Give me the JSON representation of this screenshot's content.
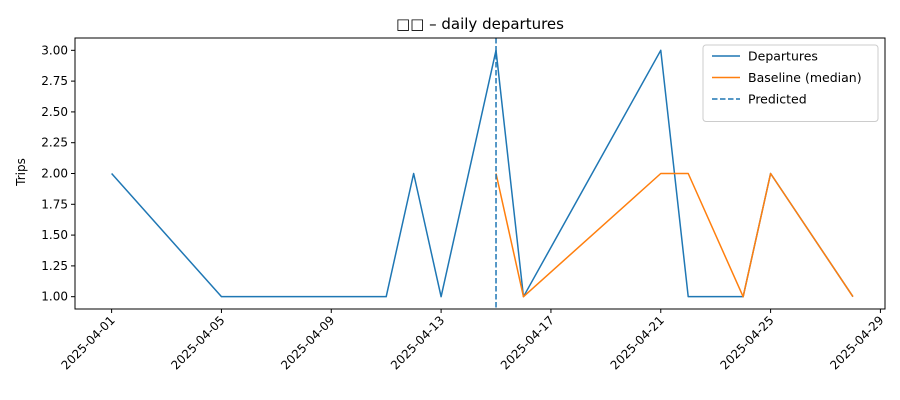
{
  "chart_data": {
    "type": "line",
    "title": "□□ – daily departures",
    "xlabel": "",
    "ylabel": "Trips",
    "x_range": [
      "2025-03-30T16:00",
      "2025-04-29T04:00"
    ],
    "ylim": [
      0.9,
      3.1
    ],
    "y_ticks": [
      "1.00",
      "1.25",
      "1.50",
      "1.75",
      "2.00",
      "2.25",
      "2.50",
      "2.75",
      "3.00"
    ],
    "x_ticks": [
      "2025-04-01",
      "2025-04-05",
      "2025-04-09",
      "2025-04-13",
      "2025-04-17",
      "2025-04-21",
      "2025-04-25",
      "2025-04-29"
    ],
    "grid": false,
    "legend_position": "top-right",
    "series": [
      {
        "name": "Departures",
        "color": "#1f77b4",
        "style": "solid",
        "points": [
          [
            "2025-04-01",
            2
          ],
          [
            "2025-04-05",
            1
          ],
          [
            "2025-04-11",
            1
          ],
          [
            "2025-04-12",
            2
          ],
          [
            "2025-04-13",
            1
          ],
          [
            "2025-04-15",
            3
          ],
          [
            "2025-04-16",
            1
          ],
          [
            "2025-04-21",
            3
          ],
          [
            "2025-04-22",
            1
          ],
          [
            "2025-04-24",
            1
          ],
          [
            "2025-04-25",
            2
          ],
          [
            "2025-04-28",
            1
          ]
        ]
      },
      {
        "name": "Baseline (median)",
        "color": "#ff7f0e",
        "style": "solid",
        "points": [
          [
            "2025-04-15",
            2
          ],
          [
            "2025-04-16",
            1
          ],
          [
            "2025-04-21",
            2
          ],
          [
            "2025-04-22",
            2
          ],
          [
            "2025-04-24",
            1
          ],
          [
            "2025-04-25",
            2
          ],
          [
            "2025-04-28",
            1
          ]
        ]
      }
    ],
    "vlines": [
      {
        "name": "Predicted",
        "x": "2025-04-15",
        "color": "#1f77b4",
        "style": "dashed"
      }
    ]
  }
}
